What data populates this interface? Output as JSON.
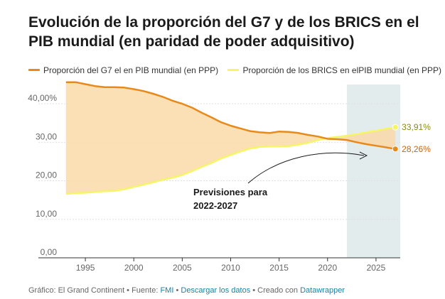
{
  "title": "Evolución de la proporción del G7 y de los BRICS en el PIB mundial (en paridad de poder adquisitivo)",
  "legend": {
    "g7": "Proporción del G7 el en PIB mundial (en PPP)",
    "brics": "Proporción de los BRICS en elPIB mundial (en PPP)"
  },
  "footer": {
    "prefix": "Gráfico: El Grand Continent • Fuente: ",
    "source_link": "FMI",
    "sep1": " • ",
    "download_link": "Descargar los datos",
    "sep2": " • Creado con ",
    "tool_link": "Datawrapper"
  },
  "colors": {
    "g7": "#e8891a",
    "brics": "#f5f566",
    "fill": "#fad9a8",
    "forecast_band": "#e3eced",
    "g7_label": "#c7670f",
    "brics_label": "#8a8a10"
  },
  "chart_data": {
    "type": "line",
    "title": "Evolución de la proporción del G7 y de los BRICS en el PIB mundial (en paridad de poder adquisitivo)",
    "xlabel": "",
    "ylabel": "",
    "xlim": [
      1992.5,
      2027.5
    ],
    "ylim": [
      0,
      45
    ],
    "yticks": [
      0,
      10,
      20,
      30,
      40
    ],
    "ytick_labels": [
      "0,00",
      "10,00",
      "20,00",
      "30,00",
      "40,00%"
    ],
    "xticks": [
      1995,
      2000,
      2005,
      2010,
      2015,
      2020,
      2025
    ],
    "grid": true,
    "legend_position": "top-left",
    "shaded_region": {
      "from": 2022,
      "to": 2027
    },
    "annotation": {
      "text_line1": "Previsiones para",
      "text_line2": "2022-2027"
    },
    "end_labels": {
      "brics": "33,91%",
      "g7": "28,26%"
    },
    "x": [
      1993,
      1994,
      1995,
      1996,
      1997,
      1998,
      1999,
      2000,
      2001,
      2002,
      2003,
      2004,
      2005,
      2006,
      2007,
      2008,
      2009,
      2010,
      2011,
      2012,
      2013,
      2014,
      2015,
      2016,
      2017,
      2018,
      2019,
      2020,
      2021,
      2022,
      2023,
      2024,
      2025,
      2026,
      2027
    ],
    "series": [
      {
        "name": "Proporción del G7 el en PIB mundial (en PPP)",
        "values": [
          45.6,
          45.6,
          45.1,
          44.6,
          44.3,
          44.3,
          44.2,
          43.8,
          43.3,
          42.6,
          41.8,
          40.8,
          40.0,
          39.0,
          37.7,
          36.5,
          35.2,
          34.3,
          33.6,
          32.9,
          32.6,
          32.4,
          32.8,
          32.7,
          32.4,
          31.9,
          31.5,
          30.9,
          30.8,
          30.6,
          30.0,
          29.5,
          29.1,
          28.7,
          28.26
        ]
      },
      {
        "name": "Proporción de los BRICS en elPIB mundial (en PPP)",
        "values": [
          16.6,
          16.8,
          16.9,
          17.1,
          17.3,
          17.4,
          17.8,
          18.4,
          19.0,
          19.6,
          20.3,
          20.8,
          21.5,
          22.5,
          23.6,
          24.6,
          25.8,
          26.7,
          27.6,
          28.4,
          28.8,
          28.9,
          28.9,
          29.0,
          29.4,
          29.9,
          30.6,
          31.1,
          31.4,
          31.7,
          32.1,
          32.6,
          33.0,
          33.5,
          33.91
        ]
      }
    ]
  }
}
